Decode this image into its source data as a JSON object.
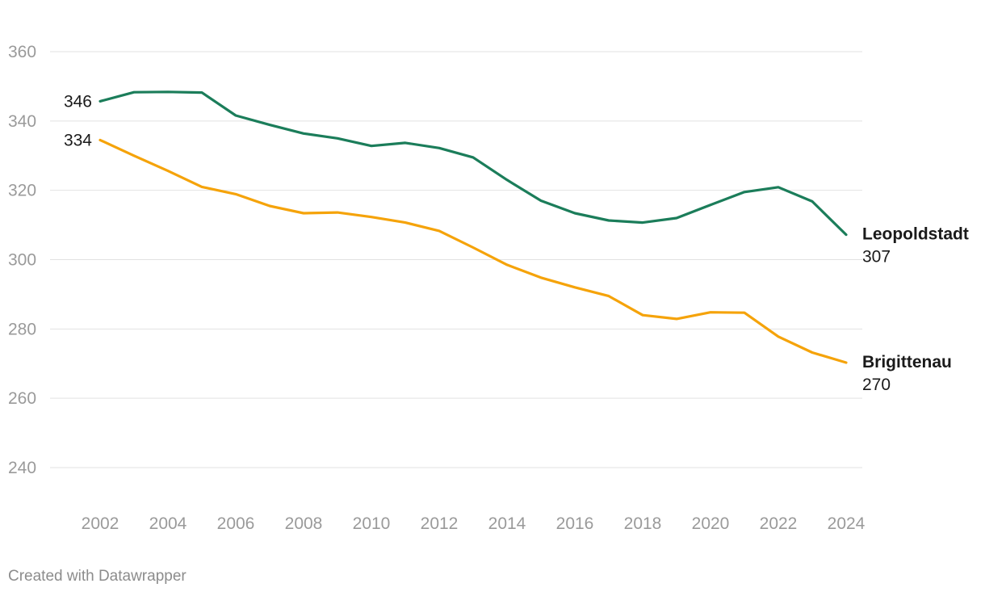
{
  "chart_data": {
    "type": "line",
    "title": "",
    "xlabel": "",
    "ylabel": "",
    "ylim": [
      230,
      360
    ],
    "yticks": [
      240,
      260,
      280,
      300,
      320,
      340,
      360
    ],
    "xticks": [
      2002,
      2004,
      2006,
      2008,
      2010,
      2012,
      2014,
      2016,
      2018,
      2020,
      2022,
      2024
    ],
    "grid": true,
    "x": [
      2002,
      2003,
      2004,
      2005,
      2006,
      2007,
      2008,
      2009,
      2010,
      2011,
      2012,
      2013,
      2014,
      2015,
      2016,
      2017,
      2018,
      2019,
      2020,
      2021,
      2022,
      2023,
      2024
    ],
    "series": [
      {
        "name": "Leopoldstadt",
        "color": "#1b7d5a",
        "start_label": "346",
        "end_label": "307",
        "values": [
          345.7,
          348.3,
          348.4,
          348.2,
          341.6,
          338.9,
          336.4,
          335.0,
          332.8,
          333.7,
          332.2,
          329.5,
          323.0,
          317.0,
          313.4,
          311.3,
          310.7,
          312.0,
          315.8,
          319.5,
          320.9,
          316.8,
          307.2
        ]
      },
      {
        "name": "Brigittenau",
        "color": "#f5a30a",
        "start_label": "334",
        "end_label": "270",
        "values": [
          334.5,
          330.0,
          325.6,
          321.0,
          318.9,
          315.5,
          313.4,
          313.6,
          312.3,
          310.7,
          308.3,
          303.5,
          298.5,
          294.8,
          292.0,
          289.5,
          284.0,
          282.9,
          284.8,
          284.7,
          277.8,
          273.2,
          270.3
        ]
      }
    ]
  },
  "footer": {
    "credit": "Created with Datawrapper"
  }
}
